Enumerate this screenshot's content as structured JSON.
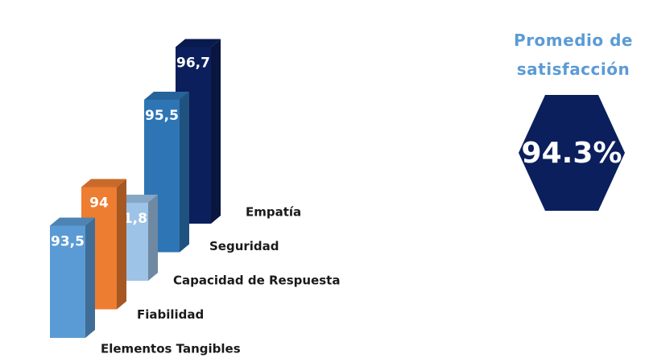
{
  "chart_data": {
    "type": "bar",
    "categories": [
      "Elementos Tangibles",
      "Fiabilidad",
      "Capacidad de Respuesta",
      "Seguridad",
      "Empatía"
    ],
    "values": [
      93.5,
      94,
      91.8,
      95.5,
      96.7
    ],
    "value_labels": [
      "93,5",
      "94",
      "91,8",
      "95,5",
      "96,7"
    ],
    "colors": [
      "#5b9bd5",
      "#ed7d31",
      "#9dc3e6",
      "#2e75b6",
      "#0b1f5c"
    ],
    "summary": {
      "title": "Promedio de satisfacción",
      "value": 94.3,
      "label": "94.3%",
      "color": "#0b1f5c"
    }
  }
}
